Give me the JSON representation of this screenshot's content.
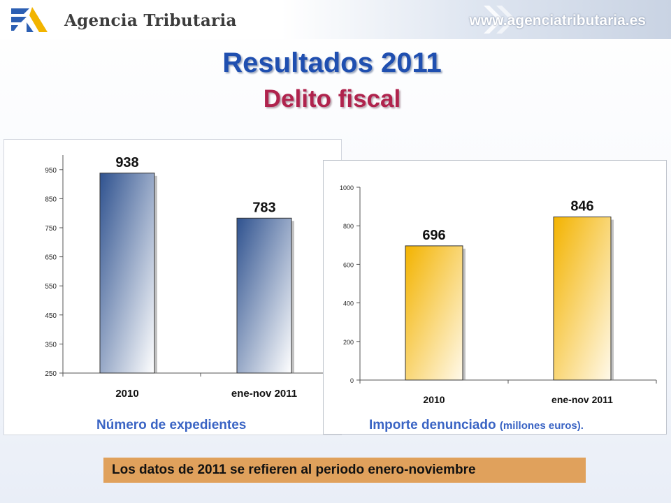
{
  "header": {
    "brand": "Agencia Tributaria",
    "url": "www.agenciatributaria.es",
    "logo_icon": "agencia-tributaria-logo-icon",
    "arrows_icon": "chevron-arrows-icon"
  },
  "title": "Resultados 2011",
  "subtitle": "Delito fiscal",
  "chart_data": [
    {
      "type": "bar",
      "categories": [
        "2010",
        "ene-nov 2011"
      ],
      "values": [
        938,
        783
      ],
      "data_labels": [
        "938",
        "783"
      ],
      "yticks": [
        "250",
        "350",
        "450",
        "550",
        "650",
        "750",
        "850",
        "950"
      ],
      "ylim": [
        250,
        1000
      ],
      "grid": false,
      "bar_color": "#3d5f9e",
      "caption": "Número de expedientes"
    },
    {
      "type": "bar",
      "categories": [
        "2010",
        "ene-nov 2011"
      ],
      "values": [
        696,
        846
      ],
      "data_labels": [
        "696",
        "846"
      ],
      "yticks": [
        "0",
        "200",
        "400",
        "600",
        "800",
        "1000"
      ],
      "ylim": [
        0,
        1000
      ],
      "grid": false,
      "bar_color": "#f4b800",
      "caption": "Importe  denunciado",
      "caption_unit": "(millones euros)."
    }
  ],
  "note": "Los datos de 2011 se refieren al periodo enero-noviembre",
  "colors": {
    "title": "#1f4fb0",
    "subtitle": "#b0234d",
    "caption": "#3a64c4",
    "note_bg": "#e0a15c"
  }
}
